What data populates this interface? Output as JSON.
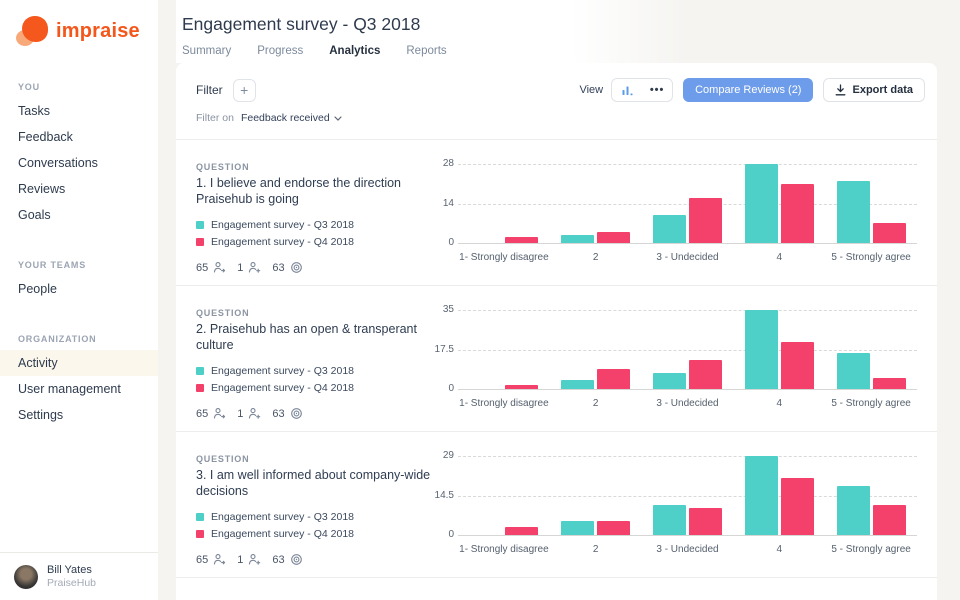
{
  "sidebar": {
    "logo_text": "impraise",
    "sections": [
      {
        "label": "YOU",
        "items": [
          "Tasks",
          "Feedback",
          "Conversations",
          "Reviews",
          "Goals"
        ]
      },
      {
        "label": "YOUR TEAMS",
        "items": [
          "People"
        ]
      },
      {
        "label": "ORGANIZATION",
        "items": [
          "Activity",
          "User management",
          "Settings"
        ]
      }
    ],
    "active_item": "Activity",
    "user": {
      "name": "Bill Yates",
      "org": "PraiseHub"
    }
  },
  "header": {
    "title": "Engagement survey - Q3 2018",
    "tabs": [
      "Summary",
      "Progress",
      "Analytics",
      "Reports"
    ],
    "active_tab": "Analytics"
  },
  "toolbar": {
    "filter_label": "Filter",
    "add_filter_icon": "+",
    "filter_on_label": "Filter on",
    "filter_on_value": "Feedback received",
    "view_label": "View",
    "view_dots_icon": "•••",
    "compare_button": "Compare Reviews (2)",
    "export_button": "Export data"
  },
  "colors": {
    "series_q3": "#4ed0c9",
    "series_q4": "#f4416b",
    "brand_orange": "#f4571b",
    "compare_blue": "#6d9cea"
  },
  "chart_data": [
    {
      "type": "bar",
      "question_label": "QUESTION",
      "title": "1. I believe and endorse the direction Praisehub is going",
      "categories": [
        "1- Strongly disagree",
        "2",
        "3 - Undecided",
        "4",
        "5 - Strongly agree"
      ],
      "series": [
        {
          "name": "Engagement survey - Q3 2018",
          "color": "#4ed0c9",
          "values": [
            0,
            3,
            10,
            28,
            22
          ]
        },
        {
          "name": "Engagement survey - Q4 2018",
          "color": "#f4416b",
          "values": [
            2,
            4,
            16,
            21,
            7
          ]
        }
      ],
      "ylim": [
        0,
        28
      ],
      "yticks": [
        "28",
        "14",
        "0"
      ],
      "grid": "dashed-horizontal",
      "legend_position": "left",
      "stats": [
        {
          "value": "65",
          "icon": "person-arrow"
        },
        {
          "value": "1",
          "icon": "person-plus"
        },
        {
          "value": "63",
          "icon": "target"
        }
      ]
    },
    {
      "type": "bar",
      "question_label": "QUESTION",
      "title": "2. Praisehub has an open & transperant culture",
      "categories": [
        "1- Strongly disagree",
        "2",
        "3 - Undecided",
        "4",
        "5 - Strongly agree"
      ],
      "series": [
        {
          "name": "Engagement survey - Q3 2018",
          "color": "#4ed0c9",
          "values": [
            0,
            4,
            7,
            35,
            16
          ]
        },
        {
          "name": "Engagement survey - Q4 2018",
          "color": "#f4416b",
          "values": [
            2,
            9,
            13,
            21,
            5
          ]
        }
      ],
      "ylim": [
        0,
        35
      ],
      "yticks": [
        "35",
        "17.5",
        "0"
      ],
      "grid": "dashed-horizontal",
      "legend_position": "left",
      "stats": [
        {
          "value": "65",
          "icon": "person-arrow"
        },
        {
          "value": "1",
          "icon": "person-plus"
        },
        {
          "value": "63",
          "icon": "target"
        }
      ]
    },
    {
      "type": "bar",
      "question_label": "QUESTION",
      "title": "3. I am well informed about company-wide decisions",
      "categories": [
        "1- Strongly disagree",
        "2",
        "3 - Undecided",
        "4",
        "5 - Strongly agree"
      ],
      "series": [
        {
          "name": "Engagement survey - Q3 2018",
          "color": "#4ed0c9",
          "values": [
            0,
            5,
            11,
            29,
            18
          ]
        },
        {
          "name": "Engagement survey - Q4 2018",
          "color": "#f4416b",
          "values": [
            3,
            5,
            10,
            21,
            11
          ]
        }
      ],
      "ylim": [
        0,
        29
      ],
      "yticks": [
        "29",
        "14.5",
        "0"
      ],
      "grid": "dashed-horizontal",
      "legend_position": "left",
      "stats": [
        {
          "value": "65",
          "icon": "person-arrow"
        },
        {
          "value": "1",
          "icon": "person-plus"
        },
        {
          "value": "63",
          "icon": "target"
        }
      ]
    }
  ]
}
